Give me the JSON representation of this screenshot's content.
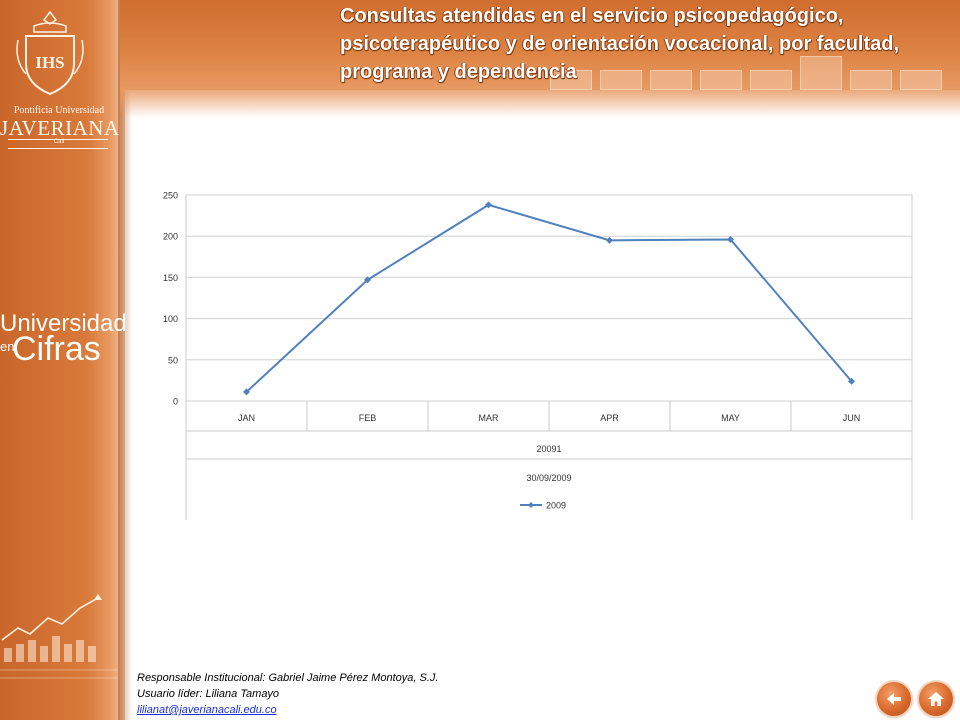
{
  "page": {
    "title": "Consultas atendidas en el servicio psicopedagógico, psicoterapéutico y de orientación vocacional, por facultad, programa y dependencia"
  },
  "logo": {
    "line1": "Pontificia Universidad",
    "line2": "JAVERIANA",
    "line3": "Cali",
    "crest_text": "IHS"
  },
  "brand": {
    "line1": "Universidad",
    "en": "en",
    "line2": "Cifras"
  },
  "chart_data": {
    "type": "line",
    "categories": [
      "JAN",
      "FEB",
      "MAR",
      "APR",
      "MAY",
      "JUN"
    ],
    "category_groups": [
      "20091",
      "30/09/2009"
    ],
    "series": [
      {
        "name": "2009",
        "values": [
          11,
          147,
          238,
          195,
          196,
          24
        ],
        "color": "#4f81bd"
      }
    ],
    "ylim": [
      0,
      250
    ],
    "yticks": [
      0,
      50,
      100,
      150,
      200,
      250
    ],
    "grid": true,
    "legend": "bottom"
  },
  "footer": {
    "responsable": "Responsable Institucional: Gabriel Jaime Pérez Montoya, S.J.",
    "usuario": "Usuario líder: Liliana Tamayo",
    "email": "lilianat@javerianacali.edu.co"
  },
  "nav": {
    "back_icon": "back-arrow-icon",
    "home_icon": "home-icon"
  }
}
